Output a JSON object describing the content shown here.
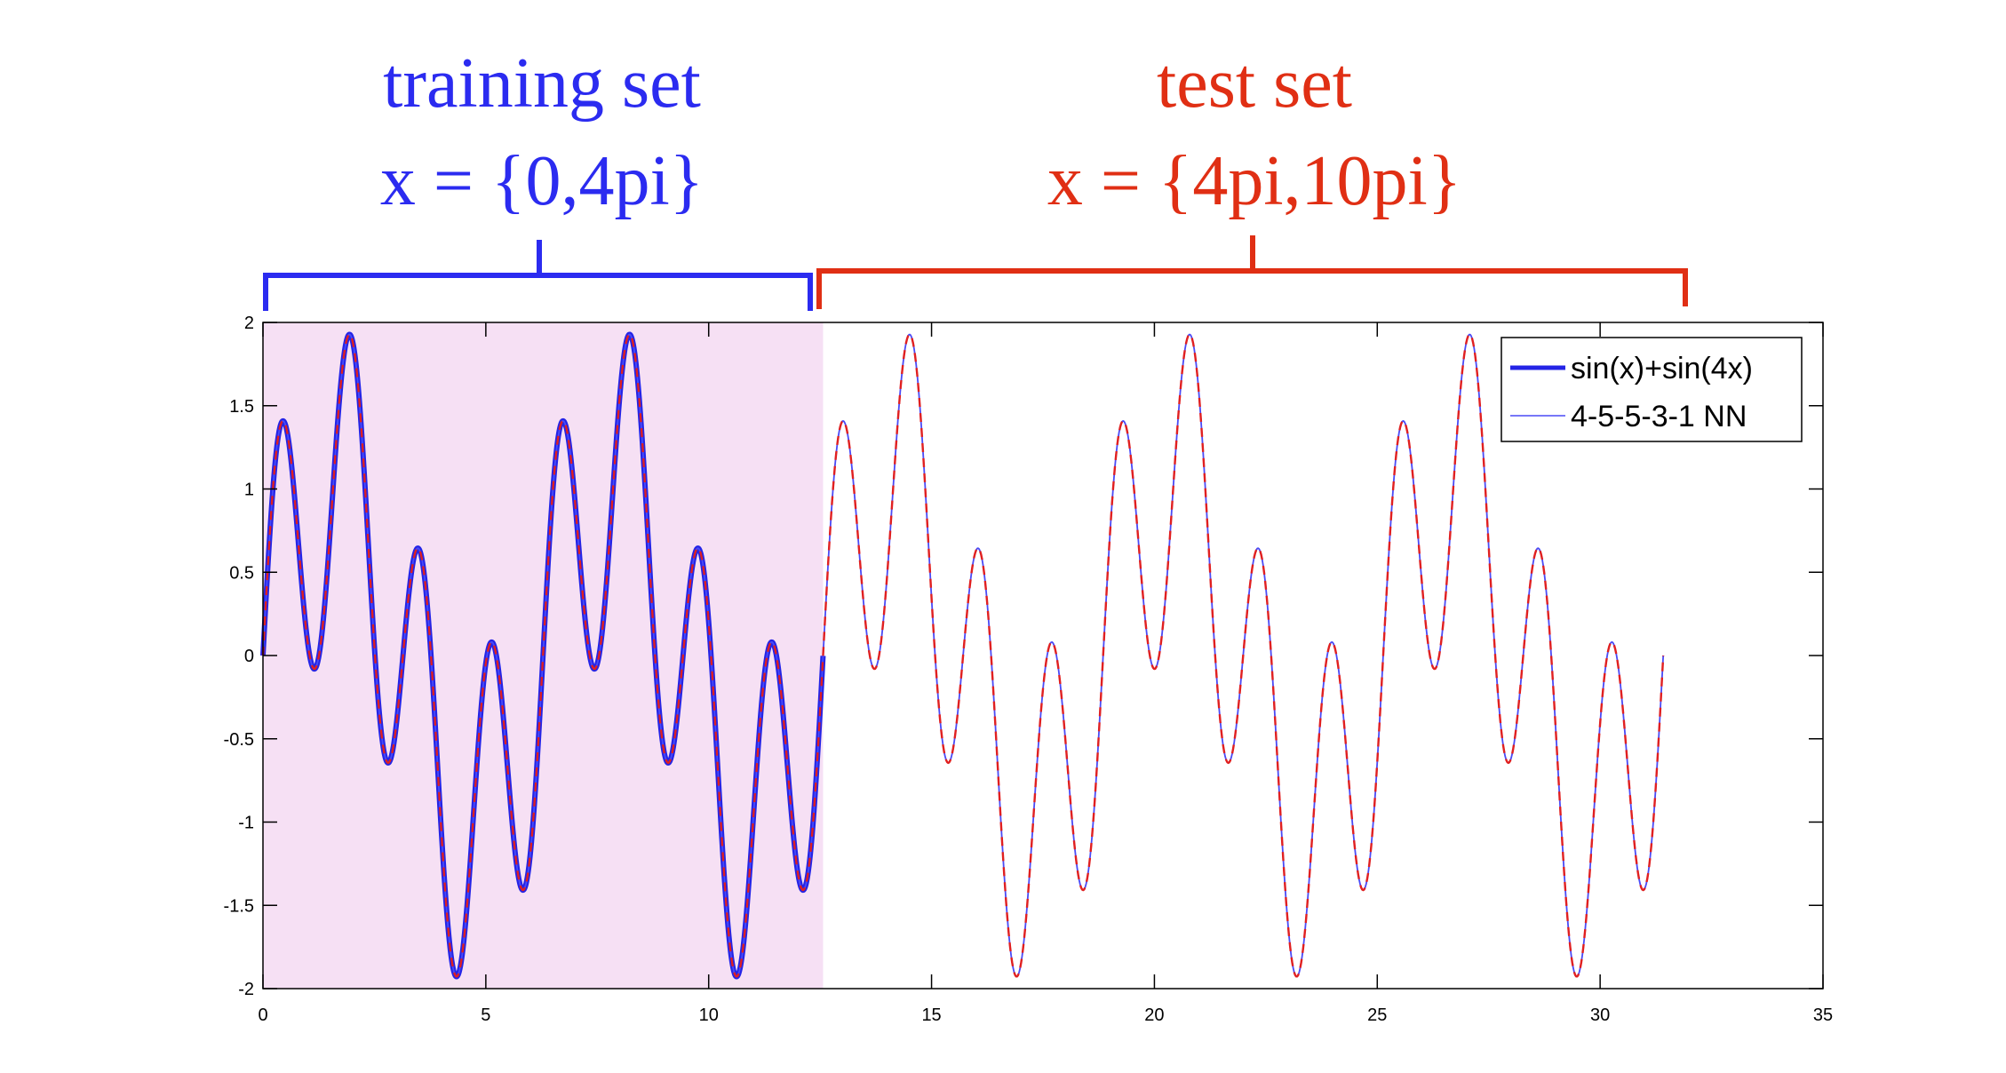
{
  "annotations": {
    "training": {
      "line1": "training set",
      "line2": "x = {0,4pi}",
      "color": "#2b2bf0"
    },
    "test": {
      "line1": "test set",
      "line2": "x = {4pi,10pi}",
      "color": "#e02f14"
    }
  },
  "chart_data": {
    "type": "line",
    "xlim": [
      0,
      35
    ],
    "ylim": [
      -2,
      2
    ],
    "xticks": [
      0,
      5,
      10,
      15,
      20,
      25,
      30,
      35
    ],
    "yticks": [
      2,
      1.5,
      1,
      0.5,
      0,
      -0.5,
      -1,
      -1.5,
      -2
    ],
    "xtick_labels": [
      "0",
      "5",
      "10",
      "15",
      "20",
      "25",
      "30",
      "35"
    ],
    "ytick_labels": [
      "2",
      "1.5",
      "1",
      "0.5",
      "0",
      "-0.5",
      "-1",
      "-1.5",
      "-2"
    ],
    "grid": false,
    "legend_placement": "top-right",
    "highlight_region": {
      "x": [
        0,
        12.566
      ],
      "color": "#f6e0f4"
    },
    "series": [
      {
        "name": "sin(x)+sin(4x)",
        "function": "sin(x)+sin(4x)",
        "x_range": [
          0,
          12.566
        ],
        "color": "#2424e6",
        "style": "solid-thick"
      },
      {
        "name": "4-5-5-3-1 NN",
        "function": "sin(x)+sin(4x)",
        "x_range": [
          0,
          31.416
        ],
        "color": "#4a4af5",
        "style": "solid-thin"
      },
      {
        "name": "",
        "function": "sin(x)+sin(4x)",
        "x_range": [
          0,
          31.416
        ],
        "color": "#e02020",
        "style": "dashed"
      }
    ]
  }
}
